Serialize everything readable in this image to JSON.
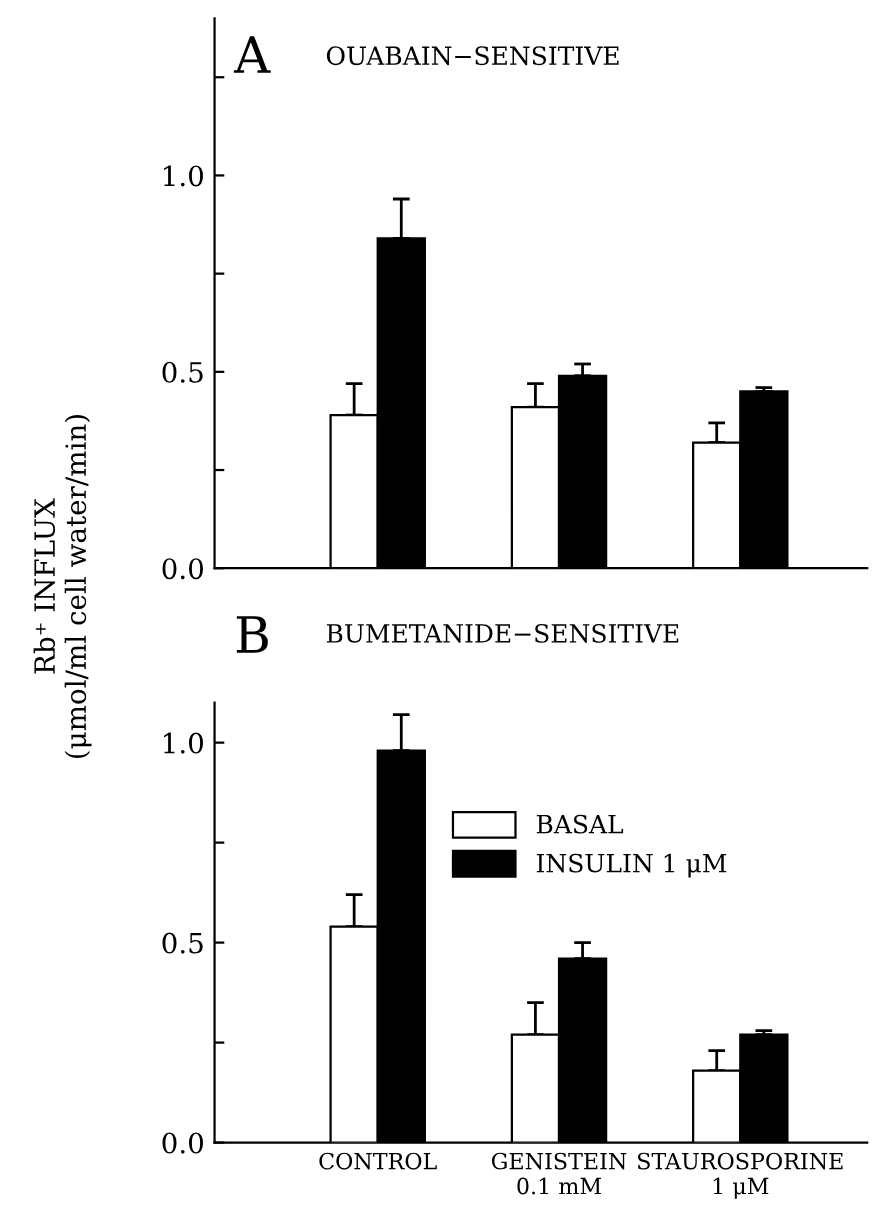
{
  "chart_data": [
    {
      "type": "bar",
      "title": "A",
      "subtitle": "OUABAIN−SENSITIVE",
      "ylabel": "Rb⁺ INFLUX\n(μmol/ml cell water/min)",
      "categories": [
        null,
        null,
        null
      ],
      "series": [
        {
          "color": "#ffffff",
          "values": [
            0.39,
            0.41,
            0.32
          ],
          "errors": [
            [
              0.39,
              0.47
            ],
            [
              0.41,
              0.47
            ],
            [
              0.32,
              0.37
            ]
          ]
        },
        {
          "color": "#000000",
          "values": [
            0.84,
            0.49,
            0.45
          ],
          "errors": [
            [
              0.84,
              0.94
            ],
            [
              0.49,
              0.52
            ],
            [
              0.45,
              0.46
            ]
          ]
        }
      ],
      "ylim": [
        0,
        1.4
      ],
      "yticks": [
        {
          "value": 0,
          "label": "0.0"
        },
        {
          "value": 0.25,
          "label": null
        },
        {
          "value": 0.5,
          "label": "0.5"
        },
        {
          "value": 0.75,
          "label": null
        },
        {
          "value": 1.0,
          "label": "1.0"
        },
        {
          "value": 1.25,
          "label": null
        }
      ],
      "grid": false
    },
    {
      "type": "bar",
      "title": "B",
      "subtitle": "BUMETANIDE−SENSITIVE",
      "categories": [
        "CONTROL",
        "GENISTEIN\n0.1 mM",
        "STAUROSPORINE\n1 μM"
      ],
      "series": [
        {
          "name": "BASAL",
          "color": "#ffffff",
          "values": [
            0.54,
            0.27,
            0.18
          ],
          "errors": [
            [
              0.54,
              0.62
            ],
            [
              0.27,
              0.35
            ],
            [
              0.18,
              0.23
            ]
          ]
        },
        {
          "name": "INSULIN 1 μM",
          "color": "#000000",
          "values": [
            0.98,
            0.46,
            0.27
          ],
          "errors": [
            [
              0.98,
              1.07
            ],
            [
              0.46,
              0.5
            ],
            [
              0.27,
              0.28
            ]
          ]
        }
      ],
      "ylim": [
        0,
        1.1
      ],
      "yticks": [
        {
          "value": 0,
          "label": "0.0"
        },
        {
          "value": 0.25,
          "label": null
        },
        {
          "value": 0.5,
          "label": "0.5"
        },
        {
          "value": 0.75,
          "label": null
        },
        {
          "value": 1.0,
          "label": "1.0"
        }
      ],
      "grid": false,
      "legend": "top right"
    }
  ]
}
